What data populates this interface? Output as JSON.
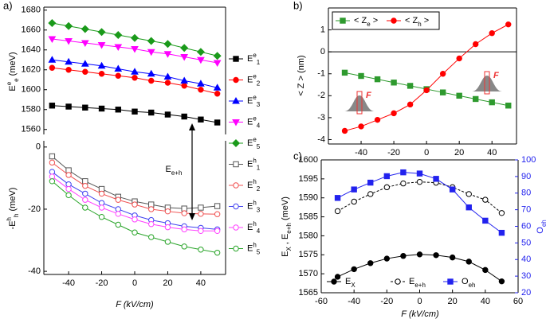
{
  "chart_data": [
    {
      "type": "line",
      "panel_label": "a)",
      "ylabel": [
        {
          "text": "E"
        },
        {
          "text": "e",
          "pos": "sup"
        },
        {
          "text": "e",
          "pos": "sub"
        },
        {
          "text": " (meV)"
        }
      ],
      "x": [
        -50,
        -40,
        -30,
        -20,
        -10,
        0,
        10,
        20,
        30,
        40,
        50
      ],
      "xlim": [
        -55,
        55
      ],
      "ylim": [
        1555,
        1683
      ],
      "yticks": [
        1560,
        1580,
        1600,
        1620,
        1640,
        1660,
        1680
      ],
      "series": [
        {
          "name": [
            {
              "text": "E"
            },
            {
              "text": "e",
              "pos": "sup"
            },
            {
              "text": "1",
              "pos": "sub"
            }
          ],
          "color": "#000000",
          "marker": "square",
          "filled": true,
          "values": [
            1584,
            1583,
            1582,
            1581,
            1580,
            1578,
            1577,
            1575,
            1573,
            1570,
            1567
          ]
        },
        {
          "name": [
            {
              "text": "E"
            },
            {
              "text": "e",
              "pos": "sup"
            },
            {
              "text": "2",
              "pos": "sub"
            }
          ],
          "color": "#ff0000",
          "marker": "circle",
          "filled": true,
          "values": [
            1622,
            1620,
            1618,
            1616,
            1614,
            1612,
            1609,
            1607,
            1604,
            1600,
            1596
          ]
        },
        {
          "name": [
            {
              "text": "E"
            },
            {
              "text": "e",
              "pos": "sup"
            },
            {
              "text": "3",
              "pos": "sub"
            }
          ],
          "color": "#0000ff",
          "marker": "triangle",
          "filled": true,
          "values": [
            1630,
            1628,
            1626,
            1624,
            1621,
            1618,
            1616,
            1613,
            1609,
            1606,
            1602
          ]
        },
        {
          "name": [
            {
              "text": "E"
            },
            {
              "text": "e",
              "pos": "sup"
            },
            {
              "text": "4",
              "pos": "sub"
            }
          ],
          "color": "#ff00ff",
          "marker": "triangle-down",
          "filled": true,
          "values": [
            1651,
            1649,
            1647,
            1645,
            1643,
            1641,
            1638,
            1636,
            1633,
            1630,
            1627
          ]
        },
        {
          "name": [
            {
              "text": "E"
            },
            {
              "text": "e",
              "pos": "sup"
            },
            {
              "text": "5",
              "pos": "sub"
            }
          ],
          "color": "#1a9a1a",
          "marker": "diamond",
          "filled": true,
          "values": [
            1667,
            1664,
            1661,
            1658,
            1655,
            1652,
            1649,
            1646,
            1642,
            1638,
            1634
          ]
        }
      ]
    },
    {
      "type": "line",
      "ylabel": [
        {
          "text": "-E"
        },
        {
          "text": "h",
          "pos": "sup"
        },
        {
          "text": "h",
          "pos": "sub"
        },
        {
          "text": " (meV)"
        }
      ],
      "xlabel": "F (kV/cm)",
      "annotation": [
        {
          "text": "E"
        },
        {
          "text": "e+h",
          "pos": "sub"
        }
      ],
      "x": [
        -50,
        -40,
        -30,
        -20,
        -10,
        0,
        10,
        20,
        30,
        40,
        50
      ],
      "xlim": [
        -55,
        55
      ],
      "xticks": [
        -40,
        -20,
        0,
        20,
        40
      ],
      "ylim": [
        -41,
        2
      ],
      "yticks": [
        -40,
        -20,
        0
      ],
      "series": [
        {
          "name": [
            {
              "text": "E"
            },
            {
              "text": "h",
              "pos": "sup"
            },
            {
              "text": "1",
              "pos": "sub"
            }
          ],
          "color": "#555555",
          "marker": "square",
          "filled": false,
          "values": [
            -3,
            -7.5,
            -11,
            -13.5,
            -16,
            -17.5,
            -18.5,
            -19.5,
            -19.8,
            -19.5,
            -19
          ]
        },
        {
          "name": [
            {
              "text": "E"
            },
            {
              "text": "h",
              "pos": "sup"
            },
            {
              "text": "2",
              "pos": "sub"
            }
          ],
          "color": "#f05050",
          "marker": "circle",
          "filled": false,
          "values": [
            -5,
            -9,
            -12.5,
            -15,
            -17,
            -18.5,
            -20,
            -20.7,
            -21.3,
            -21.5,
            -21.6
          ]
        },
        {
          "name": [
            {
              "text": "E"
            },
            {
              "text": "h",
              "pos": "sup"
            },
            {
              "text": "3",
              "pos": "sub"
            }
          ],
          "color": "#4040f0",
          "marker": "circle",
          "filled": false,
          "values": [
            -8,
            -12,
            -15,
            -18,
            -20,
            -22,
            -23.5,
            -24.5,
            -25.5,
            -26,
            -26.5
          ]
        },
        {
          "name": [
            {
              "text": "E"
            },
            {
              "text": "h",
              "pos": "sup"
            },
            {
              "text": "4",
              "pos": "sub"
            }
          ],
          "color": "#ff40ff",
          "marker": "circle",
          "filled": false,
          "values": [
            -9.5,
            -13.5,
            -17,
            -19.5,
            -21.5,
            -23.3,
            -24.8,
            -25.8,
            -26.5,
            -27,
            -27
          ]
        },
        {
          "name": [
            {
              "text": "E"
            },
            {
              "text": "h",
              "pos": "sup"
            },
            {
              "text": "5",
              "pos": "sub"
            }
          ],
          "color": "#2aa52a",
          "marker": "circle",
          "filled": false,
          "values": [
            -11,
            -15.5,
            -19.5,
            -22.5,
            -25,
            -27.5,
            -29,
            -30.5,
            -32,
            -33,
            -34
          ]
        }
      ]
    },
    {
      "type": "line",
      "panel_label": "b)",
      "ylabel": "< Z > (nm)",
      "icon_label": "F",
      "zero_line": true,
      "x": [
        -50,
        -40,
        -30,
        -20,
        -10,
        0,
        10,
        20,
        30,
        40,
        50
      ],
      "xlim": [
        -60,
        55
      ],
      "xticks": [
        -40,
        -20,
        0,
        20,
        40
      ],
      "ylim": [
        -4.2,
        2.0
      ],
      "yticks": [
        -4,
        -3,
        -2,
        -1,
        0,
        1
      ],
      "series": [
        {
          "name": [
            {
              "text": "< Z"
            },
            {
              "text": "e",
              "pos": "sub"
            },
            {
              "text": " >"
            }
          ],
          "color": "#2e9a2e",
          "marker": "square",
          "filled": true,
          "values": [
            -0.95,
            -1.1,
            -1.25,
            -1.4,
            -1.55,
            -1.7,
            -1.85,
            -2.0,
            -2.15,
            -2.3,
            -2.45
          ]
        },
        {
          "name": [
            {
              "text": "< Z"
            },
            {
              "text": "h",
              "pos": "sub"
            },
            {
              "text": " >"
            }
          ],
          "color": "#ff0000",
          "marker": "circle",
          "filled": true,
          "values": [
            -3.6,
            -3.4,
            -3.1,
            -2.8,
            -2.4,
            -1.75,
            -1.0,
            -0.3,
            0.35,
            0.85,
            1.25
          ]
        }
      ]
    },
    {
      "type": "line",
      "panel_label": "c)",
      "ylabel": [
        {
          "text": "E"
        },
        {
          "text": "X",
          "pos": "sub"
        },
        {
          "text": " , E"
        },
        {
          "text": "e+h",
          "pos": "sub"
        },
        {
          "text": " (meV)"
        }
      ],
      "y2label": [
        {
          "text": "O"
        },
        {
          "text": "eh",
          "pos": "sub"
        }
      ],
      "y2color": "#2222ee",
      "xlabel": "F (kV/cm)",
      "x": [
        -50,
        -40,
        -30,
        -20,
        -10,
        0,
        10,
        20,
        30,
        40,
        50
      ],
      "xlim": [
        -60,
        60
      ],
      "xticks": [
        -60,
        -40,
        -20,
        0,
        20,
        40,
        60
      ],
      "ylim": [
        1565,
        1600
      ],
      "yticks": [
        1565,
        1570,
        1575,
        1580,
        1585,
        1590,
        1595,
        1600
      ],
      "y2lim": [
        20,
        100
      ],
      "y2ticks": [
        20,
        30,
        40,
        50,
        60,
        70,
        80,
        90,
        100
      ],
      "series": [
        {
          "name": [
            {
              "text": "E"
            },
            {
              "text": "X",
              "pos": "sub"
            }
          ],
          "color": "#000000",
          "marker": "circle",
          "filled": true,
          "values": [
            1569.2,
            1571.2,
            1572.8,
            1574,
            1574.7,
            1575.1,
            1574.9,
            1574.3,
            1573.2,
            1571,
            1568
          ]
        },
        {
          "name": [
            {
              "text": "E"
            },
            {
              "text": "e+h",
              "pos": "sub"
            }
          ],
          "color": "#000000",
          "marker": "circle",
          "filled": false,
          "dashed": true,
          "values": [
            1586.5,
            1589,
            1591,
            1592.8,
            1593.8,
            1594.2,
            1594,
            1592.8,
            1591,
            1589.5,
            1586
          ]
        },
        {
          "name": [
            {
              "text": "O"
            },
            {
              "text": "eh",
              "pos": "sub"
            }
          ],
          "color": "#2222ee",
          "marker": "square",
          "filled": true,
          "axis": "y2",
          "values": [
            77.1,
            82.2,
            86.3,
            90.2,
            92.5,
            91.8,
            88.6,
            82.2,
            71.4,
            63.4,
            56.1
          ]
        }
      ]
    }
  ]
}
